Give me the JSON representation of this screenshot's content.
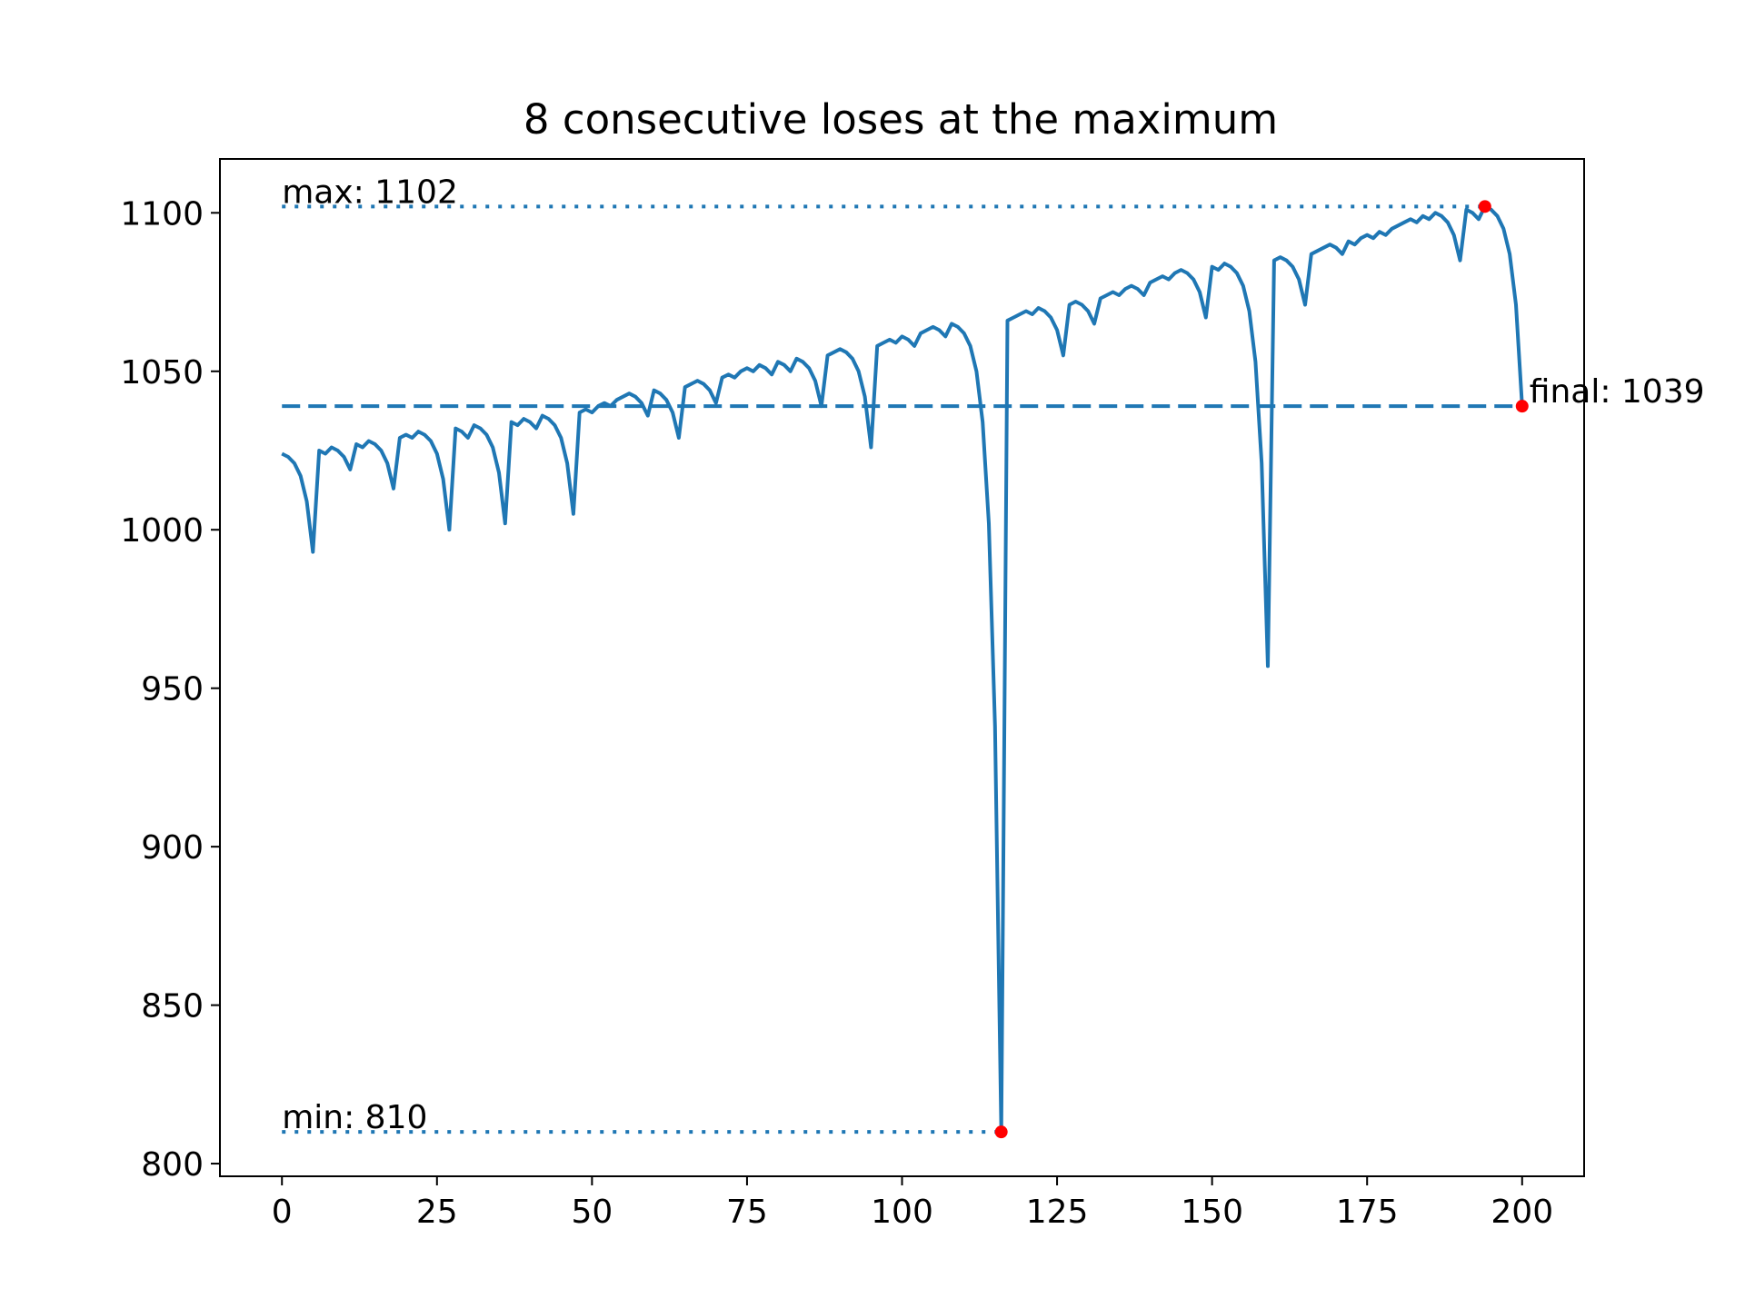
{
  "chart_data": {
    "type": "line",
    "title": "8 consecutive loses at the maximum",
    "xlabel": "",
    "ylabel": "",
    "xlim": [
      -10,
      210
    ],
    "ylim": [
      796,
      1117
    ],
    "x_ticks": [
      0,
      25,
      50,
      75,
      100,
      125,
      150,
      175,
      200
    ],
    "y_ticks": [
      800,
      850,
      900,
      950,
      1000,
      1050,
      1100
    ],
    "grid": false,
    "colors": {
      "line": "#1f77b4",
      "marker": "#ff0000",
      "axes": "#000000"
    },
    "series": [
      {
        "x": [
          0,
          1,
          2,
          3,
          4,
          5,
          6,
          7,
          8,
          9,
          10,
          11,
          12,
          13,
          14,
          15,
          16,
          17,
          18,
          19,
          20,
          21,
          22,
          23,
          24,
          25,
          26,
          27,
          28,
          29,
          30,
          31,
          32,
          33,
          34,
          35,
          36,
          37,
          38,
          39,
          40,
          41,
          42,
          43,
          44,
          45,
          46,
          47,
          48,
          49,
          50,
          51,
          52,
          53,
          54,
          55,
          56,
          57,
          58,
          59,
          60,
          61,
          62,
          63,
          64,
          65,
          66,
          67,
          68,
          69,
          70,
          71,
          72,
          73,
          74,
          75,
          76,
          77,
          78,
          79,
          80,
          81,
          82,
          83,
          84,
          85,
          86,
          87,
          88,
          89,
          90,
          91,
          92,
          93,
          94,
          95,
          96,
          97,
          98,
          99,
          100,
          101,
          102,
          103,
          104,
          105,
          106,
          107,
          108,
          109,
          110,
          111,
          112,
          113,
          114,
          115,
          116,
          117,
          118,
          119,
          120,
          121,
          122,
          123,
          124,
          125,
          126,
          127,
          128,
          129,
          130,
          131,
          132,
          133,
          134,
          135,
          136,
          137,
          138,
          139,
          140,
          141,
          142,
          143,
          144,
          145,
          146,
          147,
          148,
          149,
          150,
          151,
          152,
          153,
          154,
          155,
          156,
          157,
          158,
          159,
          160,
          161,
          162,
          163,
          164,
          165,
          166,
          167,
          168,
          169,
          170,
          171,
          172,
          173,
          174,
          175,
          176,
          177,
          178,
          179,
          180,
          181,
          182,
          183,
          184,
          185,
          186,
          187,
          188,
          189,
          190,
          191,
          192,
          193,
          194,
          195,
          196,
          197,
          198,
          199,
          200
        ],
        "values": [
          1024,
          1023,
          1021,
          1017,
          1009,
          993,
          1025,
          1024,
          1026,
          1025,
          1023,
          1019,
          1027,
          1026,
          1028,
          1027,
          1025,
          1021,
          1013,
          1029,
          1030,
          1029,
          1031,
          1030,
          1028,
          1024,
          1016,
          1000,
          1032,
          1031,
          1029,
          1033,
          1032,
          1030,
          1026,
          1018,
          1002,
          1034,
          1033,
          1035,
          1034,
          1032,
          1036,
          1035,
          1033,
          1029,
          1021,
          1005,
          1037,
          1038,
          1037,
          1039,
          1040,
          1039,
          1041,
          1042,
          1043,
          1042,
          1040,
          1036,
          1044,
          1043,
          1041,
          1037,
          1029,
          1045,
          1046,
          1047,
          1046,
          1044,
          1040,
          1048,
          1049,
          1048,
          1050,
          1051,
          1050,
          1052,
          1051,
          1049,
          1053,
          1052,
          1050,
          1054,
          1053,
          1051,
          1047,
          1039,
          1055,
          1056,
          1057,
          1056,
          1054,
          1050,
          1042,
          1026,
          1058,
          1059,
          1060,
          1059,
          1061,
          1060,
          1058,
          1062,
          1063,
          1064,
          1063,
          1061,
          1065,
          1064,
          1062,
          1058,
          1050,
          1034,
          1002,
          938,
          810,
          1066,
          1067,
          1068,
          1069,
          1068,
          1070,
          1069,
          1067,
          1063,
          1055,
          1071,
          1072,
          1071,
          1069,
          1065,
          1073,
          1074,
          1075,
          1074,
          1076,
          1077,
          1076,
          1074,
          1078,
          1079,
          1080,
          1079,
          1081,
          1082,
          1081,
          1079,
          1075,
          1067,
          1083,
          1082,
          1084,
          1083,
          1081,
          1077,
          1069,
          1053,
          1021,
          957,
          1085,
          1086,
          1085,
          1083,
          1079,
          1071,
          1087,
          1088,
          1089,
          1090,
          1089,
          1087,
          1091,
          1090,
          1092,
          1093,
          1092,
          1094,
          1093,
          1095,
          1096,
          1097,
          1098,
          1097,
          1099,
          1098,
          1100,
          1099,
          1097,
          1093,
          1085,
          1101,
          1100,
          1098,
          1102,
          1101,
          1099,
          1095,
          1087,
          1071,
          1039
        ]
      }
    ],
    "reference_lines": [
      {
        "style": "dotted",
        "value": 1102,
        "x_start": 0,
        "x_end": 194
      },
      {
        "style": "dashed",
        "value": 1039,
        "x_start": 0,
        "x_end": 200
      },
      {
        "style": "dotted",
        "value": 810,
        "x_start": 0,
        "x_end": 116
      }
    ],
    "points": [
      {
        "x": 194,
        "y": 1102
      },
      {
        "x": 116,
        "y": 810
      },
      {
        "x": 200,
        "y": 1039
      }
    ],
    "annotations": [
      {
        "text": "max: 1102",
        "x": 0,
        "y": 1102,
        "anchor": "start"
      },
      {
        "text": "min: 810",
        "x": 0,
        "y": 810,
        "anchor": "start"
      },
      {
        "text": "final: 1039",
        "x": 200,
        "y": 1039,
        "anchor": "start"
      }
    ]
  }
}
